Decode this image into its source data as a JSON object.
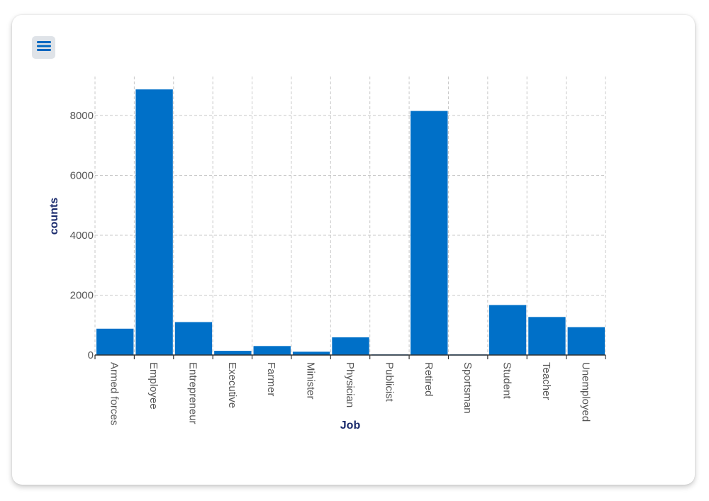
{
  "toolbar": {
    "menu_icon": "hamburger-menu-icon"
  },
  "colors": {
    "bar": "#0070c8",
    "grid": "#c8c8c8",
    "axis": "#333333",
    "axis_title": "#1a2a6c"
  },
  "chart_data": {
    "type": "bar",
    "title": "",
    "xlabel": "Job",
    "ylabel": "counts",
    "categories": [
      "Armed forces",
      "Employee",
      "Entrepreneur",
      "Executive",
      "Farmer",
      "Minister",
      "Physician",
      "Publicist",
      "Retired",
      "Sportsman",
      "Student",
      "Teacher",
      "Unemployed"
    ],
    "values": [
      880,
      8870,
      1100,
      140,
      300,
      110,
      590,
      20,
      8150,
      20,
      1670,
      1270,
      930
    ],
    "ylim": [
      0,
      9300
    ],
    "yticks": [
      0,
      2000,
      4000,
      6000,
      8000
    ],
    "ytick_labels": [
      "0",
      "2000",
      "4000",
      "6000",
      "8000"
    ],
    "grid": true,
    "legend": "none"
  }
}
